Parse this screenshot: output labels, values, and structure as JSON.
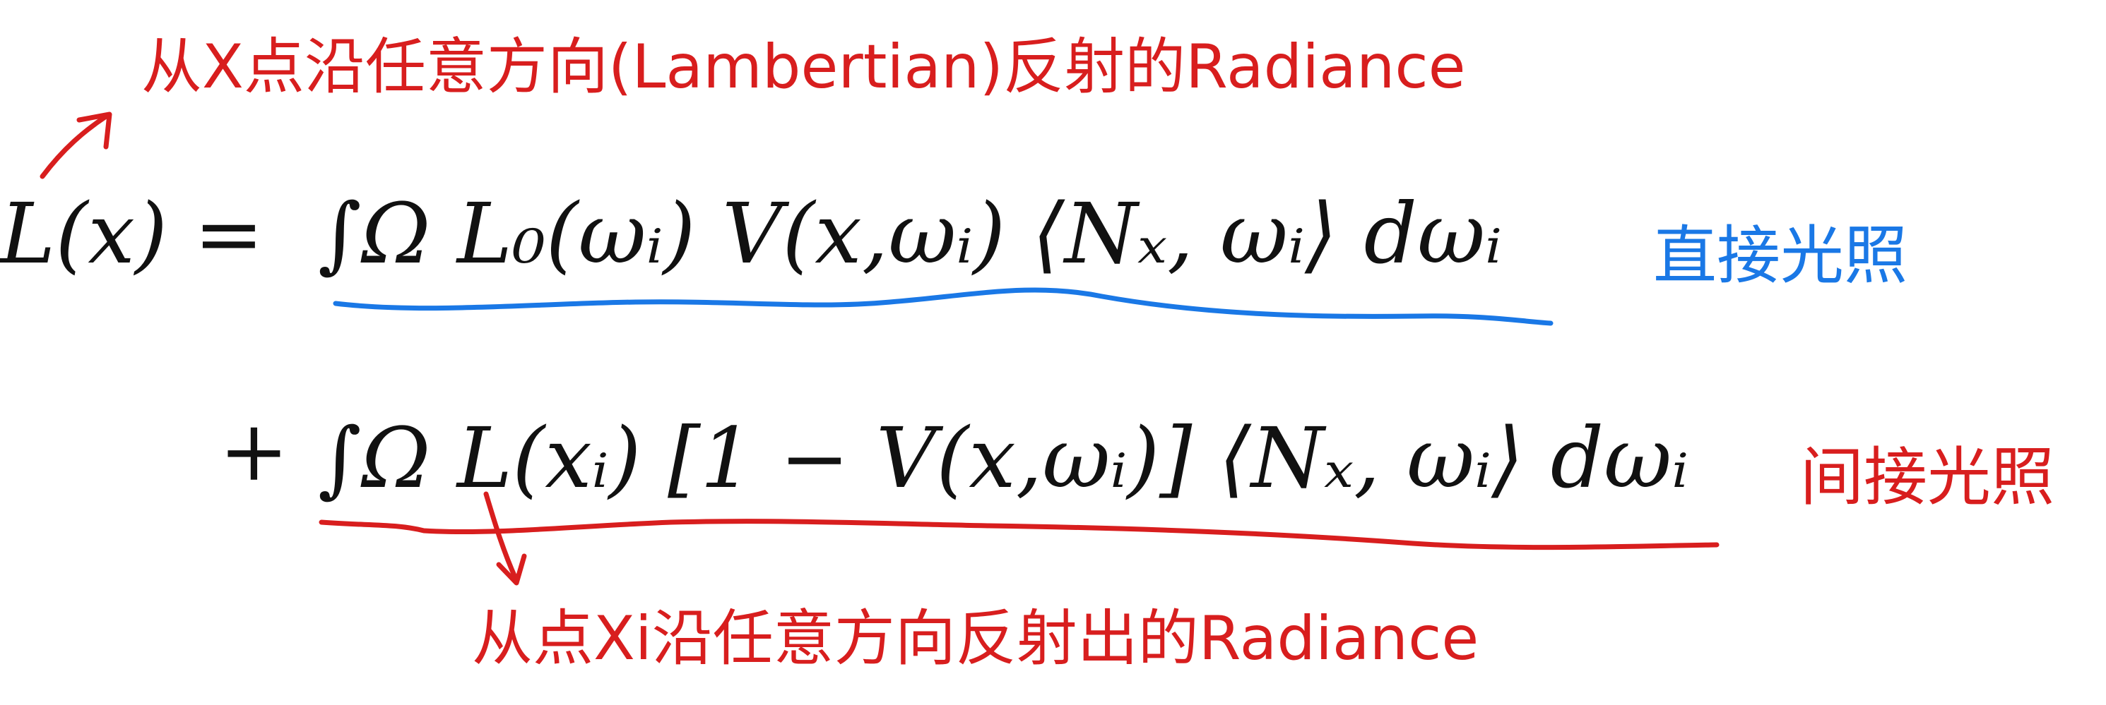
{
  "annotations": {
    "top_note": "从X点沿任意方向(Lambertian)反射的Radiance",
    "direct_label": "直接光照",
    "indirect_label": "间接光照",
    "bottom_note": "从点Xi沿任意方向反射出的Radiance"
  },
  "equation": {
    "lhs": "L(x) =",
    "direct_term": "∫Ω L₀(ωᵢ) V(x,ωᵢ) ⟨Nₓ, ωᵢ⟩ dωᵢ",
    "plus": "+",
    "indirect_term": "∫Ω L(xᵢ) [1 − V(x,ωᵢ)] ⟨Nₓ, ωᵢ⟩ dωᵢ"
  },
  "colors": {
    "ink": "#111111",
    "red": "#d81e1e",
    "blue": "#1a78e6"
  }
}
